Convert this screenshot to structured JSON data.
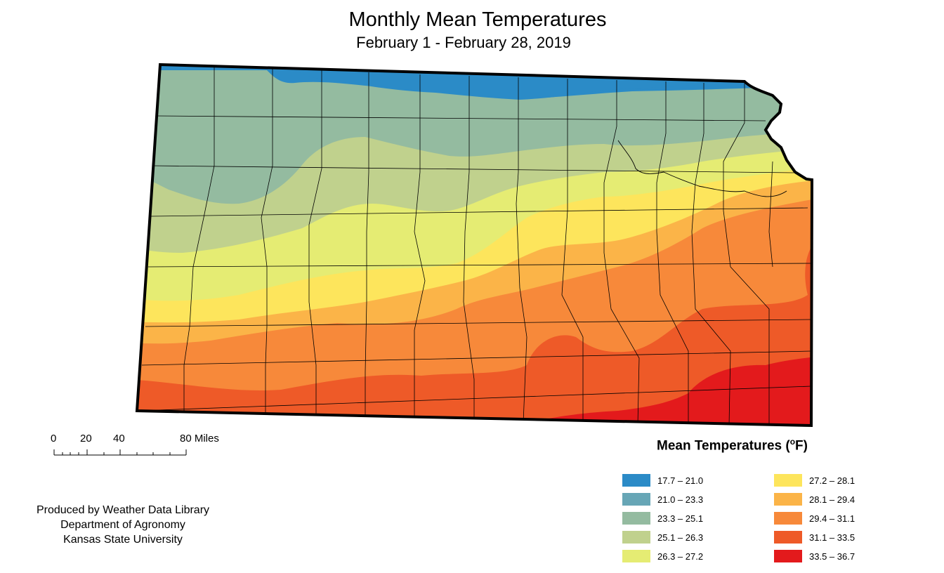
{
  "title": "Monthly Mean Temperatures",
  "subtitle": "February 1 - February 28, 2019",
  "scale_bar": {
    "ticks": [
      "0",
      "20",
      "40",
      "80 Miles"
    ]
  },
  "legend": {
    "title_main": "Mean Temperatures (",
    "title_degree": "o",
    "title_unit": "F)",
    "items": [
      {
        "label": "17.7 – 21.0",
        "color": "#2b8bc7"
      },
      {
        "label": "21.0 – 23.3",
        "color": "#67a6b6"
      },
      {
        "label": "23.3 – 25.1",
        "color": "#94bba0"
      },
      {
        "label": "25.1 – 26.3",
        "color": "#c0d18d"
      },
      {
        "label": "26.3 – 27.2",
        "color": "#e5ec73"
      },
      {
        "label": "27.2 – 28.1",
        "color": "#fde55c"
      },
      {
        "label": "28.1 – 29.4",
        "color": "#fbb448"
      },
      {
        "label": "29.4 – 31.1",
        "color": "#f7893a"
      },
      {
        "label": "31.1 – 33.5",
        "color": "#ee5a28"
      },
      {
        "label": "33.5 – 36.7",
        "color": "#e31a1c"
      }
    ]
  },
  "credit": {
    "line1": "Produced by Weather Data Library",
    "line2": "Department of Agronomy",
    "line3": "Kansas State University"
  }
}
